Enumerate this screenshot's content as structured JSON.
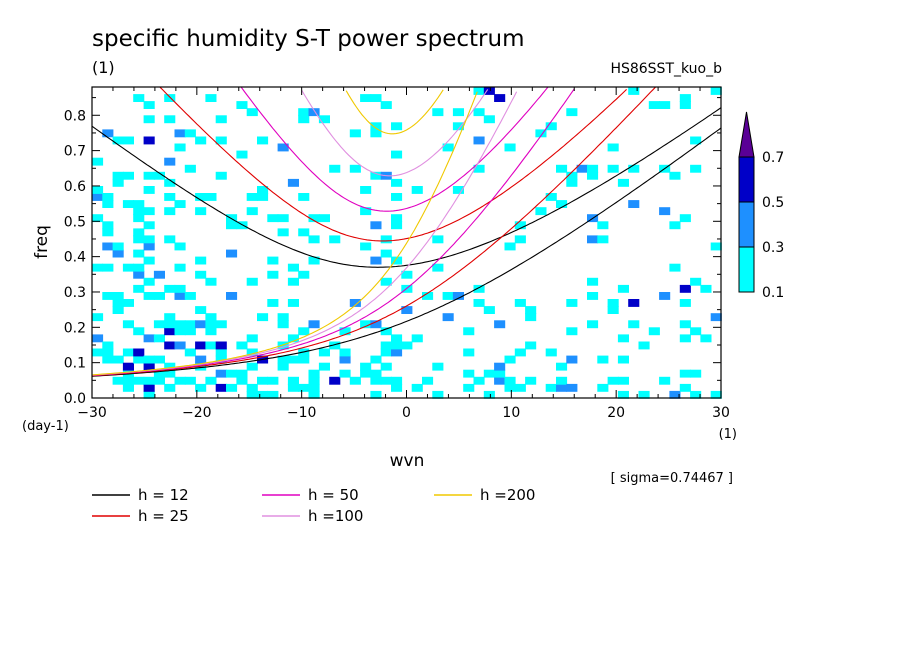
{
  "chart_data": {
    "type": "heatmap",
    "title": "specific humidity S-T power spectrum",
    "subtitle_left": "(1)",
    "subtitle_right": "HS86SST_kuo_b",
    "xlabel": "wvn",
    "ylabel": "freq",
    "xunit": "(1)",
    "yunit": "(day-1)",
    "xlim": [
      -30,
      30
    ],
    "ylim": [
      0,
      0.88
    ],
    "xticks": [
      -30,
      -20,
      -10,
      0,
      10,
      20,
      30
    ],
    "yticks": [
      0.0,
      0.1,
      0.2,
      0.3,
      0.4,
      0.5,
      0.6,
      0.7,
      0.8
    ],
    "ytick_labels": [
      "0.0",
      "0.1",
      "0.2",
      "0.3",
      "0.4",
      "0.5",
      "0.6",
      "0.7",
      "0.8"
    ],
    "sigma_label": "[ sigma=0.74467 ]",
    "colorbar": {
      "levels": [
        "0.1",
        "0.3",
        "0.5",
        "0.7"
      ],
      "colors": [
        "#00ffff",
        "#1e90ff",
        "#0000c8",
        "#5a0096"
      ]
    },
    "dispersion_curves": [
      {
        "label": "h = 12",
        "h": 12,
        "color": "#000000"
      },
      {
        "label": "h = 25",
        "h": 25,
        "color": "#e00000"
      },
      {
        "label": "h = 50",
        "h": 50,
        "color": "#e000c0"
      },
      {
        "label": "h =100",
        "h": 100,
        "color": "#e090e0"
      },
      {
        "label": "h =200",
        "h": 200,
        "color": "#f0c800"
      }
    ]
  }
}
